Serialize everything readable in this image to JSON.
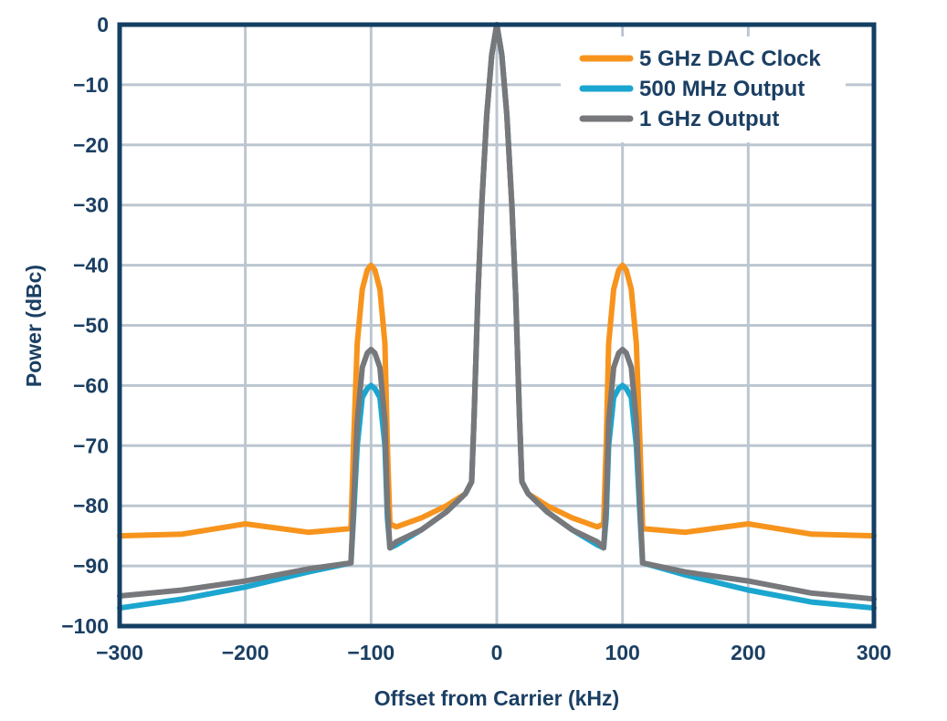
{
  "chart_data": {
    "type": "line",
    "title": "",
    "xlabel": "Offset from Carrier (kHz)",
    "ylabel": "Power (dBc)",
    "xlim": [
      -300,
      300
    ],
    "ylim": [
      -100,
      0
    ],
    "xticks": [
      -300,
      -200,
      -100,
      0,
      100,
      200,
      300
    ],
    "yticks": [
      0,
      -10,
      -20,
      -30,
      -40,
      -50,
      -60,
      -70,
      -80,
      -90,
      -100
    ],
    "xtick_labels": [
      "−300",
      "−200",
      "−100",
      "0",
      "100",
      "200",
      "300"
    ],
    "ytick_labels": [
      "0",
      "−10",
      "−20",
      "−30",
      "−40",
      "−50",
      "−60",
      "−70",
      "−80",
      "−90",
      "−100"
    ],
    "grid": true,
    "legend_position": "top-right",
    "x": [
      -300,
      -250,
      -200,
      -150,
      -116,
      -114,
      -111,
      -107,
      -103,
      -100,
      -97,
      -93,
      -89,
      -87,
      -85,
      -80,
      -60,
      -40,
      -25,
      -20,
      -18,
      -15,
      -12,
      -8,
      -4,
      0,
      4,
      8,
      12,
      15,
      18,
      20,
      25,
      40,
      60,
      80,
      85,
      87,
      89,
      93,
      97,
      100,
      103,
      107,
      111,
      114,
      116,
      150,
      200,
      250,
      300
    ],
    "series": [
      {
        "name": "5 GHz DAC Clock",
        "color": "#f7941d",
        "values": [
          -85,
          -84.7,
          -83,
          -84.4,
          -83.8,
          -70,
          -53,
          -44,
          -40.8,
          -40,
          -40.8,
          -44,
          -53,
          -70,
          -83,
          -83.5,
          -82,
          -80,
          -78,
          -76,
          -65,
          -45,
          -30,
          -15,
          -5,
          0,
          -5,
          -15,
          -30,
          -45,
          -65,
          -76,
          -78,
          -80,
          -82,
          -83.5,
          -83,
          -70,
          -53,
          -44,
          -40.8,
          -40,
          -40.8,
          -44,
          -53,
          -70,
          -83.8,
          -84.4,
          -83,
          -84.7,
          -85
        ]
      },
      {
        "name": "500 MHz Output",
        "color": "#1ba6cf",
        "values": [
          -97,
          -95.5,
          -93.5,
          -91,
          -89.5,
          -82,
          -70,
          -62,
          -60.5,
          -60,
          -60.5,
          -62,
          -70,
          -82,
          -87,
          -86.5,
          -84,
          -81,
          -78,
          -76,
          -65,
          -45,
          -30,
          -15,
          -5,
          0,
          -5,
          -15,
          -30,
          -45,
          -65,
          -76,
          -78,
          -81,
          -84,
          -86.5,
          -87,
          -82,
          -70,
          -62,
          -60.5,
          -60,
          -60.5,
          -62,
          -70,
          -82,
          -89.5,
          -91.5,
          -94,
          -96,
          -97
        ]
      },
      {
        "name": "1 GHz Output",
        "color": "#77787b",
        "values": [
          -95,
          -94,
          -92.5,
          -90.5,
          -89.5,
          -80,
          -66,
          -57,
          -54.6,
          -54,
          -54.6,
          -57,
          -66,
          -80,
          -87,
          -86,
          -84,
          -81,
          -78,
          -76,
          -65,
          -45,
          -30,
          -15,
          -5,
          0,
          -5,
          -15,
          -30,
          -45,
          -65,
          -76,
          -78,
          -81,
          -84,
          -86,
          -87,
          -80,
          -66,
          -57,
          -54.6,
          -54,
          -54.6,
          -57,
          -66,
          -80,
          -89.5,
          -91,
          -92.5,
          -94.5,
          -95.5
        ]
      }
    ],
    "colors": {
      "axis": "#133f63",
      "grid": "#bcc6d0"
    }
  }
}
